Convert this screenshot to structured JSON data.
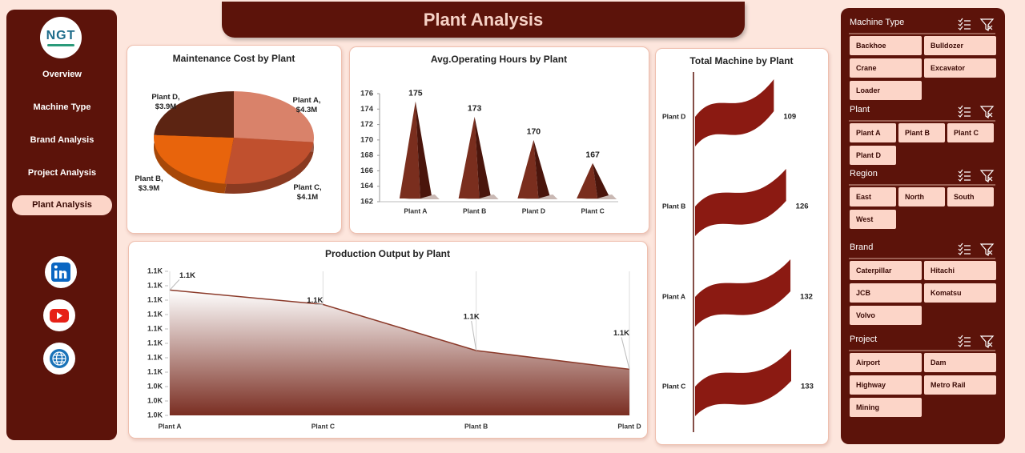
{
  "header": {
    "title": "Plant Analysis"
  },
  "sidebar": {
    "logo": "NGT",
    "nav": [
      "Overview",
      "Machine Type",
      "Brand Analysis",
      "Project Analysis",
      "Plant Analysis"
    ],
    "active_index": 4
  },
  "chart_data": [
    {
      "type": "pie",
      "title": "Maintenance Cost by Plant",
      "categories": [
        "Plant A",
        "Plant C",
        "Plant B",
        "Plant D"
      ],
      "values": [
        4.3,
        4.1,
        3.9,
        3.9
      ],
      "value_labels": [
        "Plant A,\n$4.3M",
        "Plant C,\n$4.1M",
        "Plant B,\n$3.9M",
        "Plant D,\n$3.9M"
      ],
      "colors": [
        "#d9826a",
        "#c0502e",
        "#e8640c",
        "#5c2412"
      ]
    },
    {
      "type": "bar",
      "title": "Avg.Operating Hours by Plant",
      "categories": [
        "Plant A",
        "Plant B",
        "Plant D",
        "Plant C"
      ],
      "values": [
        175,
        173,
        170,
        167
      ],
      "color": "#7a2e1e",
      "ylim": [
        162,
        176
      ],
      "yticks": [
        162,
        164,
        166,
        168,
        170,
        172,
        174,
        176
      ]
    },
    {
      "type": "area",
      "title": "Production Output by Plant",
      "categories": [
        "Plant A",
        "Plant C",
        "Plant B",
        "Plant D"
      ],
      "values": [
        1107,
        1097,
        1065,
        1052
      ],
      "value_labels": [
        "1.1K",
        "1.1K",
        "1.1K",
        "1.1K"
      ],
      "color": "#8b3a2a",
      "ylim": [
        1020,
        1120
      ],
      "yticks": [
        {
          "value": 1020,
          "label": "1.0K"
        },
        {
          "value": 1030,
          "label": "1.0K"
        },
        {
          "value": 1040,
          "label": "1.0K"
        },
        {
          "value": 1050,
          "label": "1.1K"
        },
        {
          "value": 1060,
          "label": "1.1K"
        },
        {
          "value": 1070,
          "label": "1.1K"
        },
        {
          "value": 1080,
          "label": "1.1K"
        },
        {
          "value": 1090,
          "label": "1.1K"
        },
        {
          "value": 1100,
          "label": "1.1K"
        },
        {
          "value": 1110,
          "label": "1.1K"
        },
        {
          "value": 1120,
          "label": "1.1K"
        }
      ]
    },
    {
      "type": "flag",
      "title": "Total Machine by Plant",
      "categories": [
        "Plant D",
        "Plant B",
        "Plant A",
        "Plant C"
      ],
      "values": [
        109,
        126,
        132,
        133
      ],
      "color": "#8b1a12"
    }
  ],
  "slicers": [
    {
      "title": "Machine Type",
      "items": [
        "Backhoe",
        "Bulldozer",
        "Crane",
        "Excavator",
        "Loader"
      ]
    },
    {
      "title": "Plant",
      "items": [
        "Plant A",
        "Plant B",
        "Plant C",
        "Plant D"
      ]
    },
    {
      "title": "Region",
      "items": [
        "East",
        "North",
        "South",
        "West"
      ]
    },
    {
      "title": "Brand",
      "items": [
        "Caterpillar",
        "Hitachi",
        "JCB",
        "Komatsu",
        "Volvo"
      ]
    },
    {
      "title": "Project",
      "items": [
        "Airport",
        "Dam",
        "Highway",
        "Metro Rail",
        "Mining"
      ]
    }
  ]
}
